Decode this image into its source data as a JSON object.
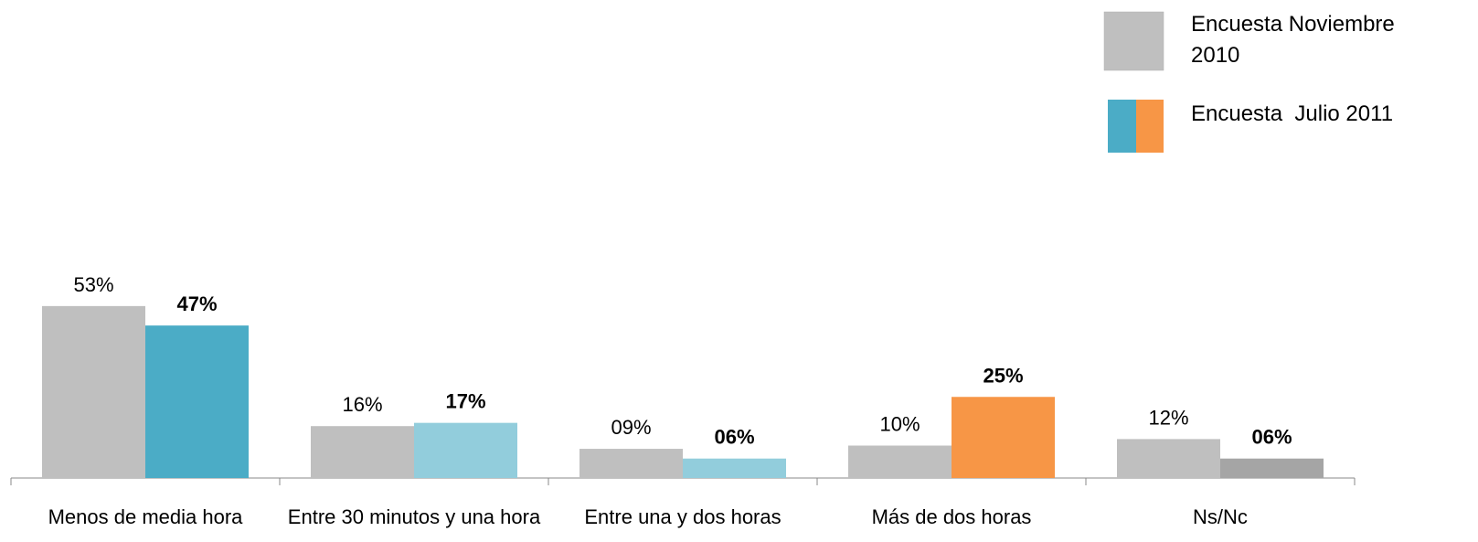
{
  "chart_data": {
    "type": "bar",
    "categories": [
      "Menos de media hora",
      "Entre 30 minutos y una hora",
      "Entre una y dos horas",
      "Más de dos horas",
      "Ns/Nc"
    ],
    "series": [
      {
        "name": "Encuesta Noviembre 2010",
        "color": "#bfbfbf",
        "values": [
          53,
          16,
          9,
          10,
          12
        ],
        "value_labels": [
          "53%",
          "16%",
          "09%",
          "10%",
          "12%"
        ]
      },
      {
        "name": "Encuesta  Julio 2011",
        "colors": [
          "#4bacc6",
          "#92cddc",
          "#92cddc",
          "#f79646",
          "#a5a5a5"
        ],
        "values": [
          47,
          17,
          6,
          25,
          6
        ],
        "value_labels": [
          "47%",
          "17%",
          "06%",
          "25%",
          "06%"
        ]
      }
    ],
    "ylim": [
      0,
      100
    ]
  }
}
